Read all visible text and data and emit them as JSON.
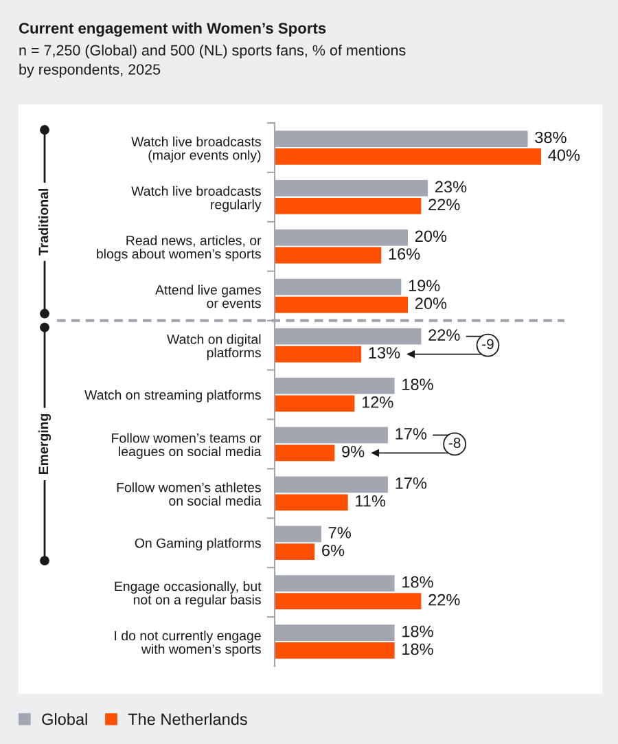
{
  "chart_data": {
    "type": "bar",
    "orientation": "horizontal",
    "title": "Current engagement with Women’s Sports",
    "subtitle": "n = 7,250 (Global) and 500 (NL) sports fans, % of mentions\nby respondents, 2025",
    "categories": [
      "Watch live broadcasts\n(major events only)",
      "Watch live broadcasts\nregularly",
      "Read news, articles, or\nblogs about women’s sports",
      "Attend live games\nor events",
      "Watch on digital\nplatforms",
      "Watch on streaming platforms",
      "Follow women’s teams or\nleagues on social media",
      "Follow women’s athletes\non social media",
      "On Gaming platforms",
      "Engage occasionally, but\nnot on a regular basis",
      "I do not currently engage\nwith women’s sports"
    ],
    "series": [
      {
        "name": "Global",
        "color": "#a1a6b0",
        "values": [
          38,
          23,
          20,
          19,
          22,
          18,
          17,
          17,
          7,
          18,
          18
        ],
        "value_labels": [
          "38%",
          "23%",
          "20%",
          "19%",
          "22%",
          "18%",
          "17%",
          "17%",
          "7%",
          "18%",
          "18%"
        ]
      },
      {
        "name": "The Netherlands",
        "color": "#fe5000",
        "values": [
          40,
          22,
          16,
          20,
          13,
          12,
          9,
          11,
          6,
          22,
          18
        ],
        "value_labels": [
          "40%",
          "22%",
          "16%",
          "20%",
          "13%",
          "12%",
          "9%",
          "11%",
          "6%",
          "22%",
          "18%"
        ]
      }
    ],
    "annotations": [
      "Traditional",
      "Emerging",
      "-9",
      "-8"
    ],
    "legend": "bottom left",
    "tick_labels": "y"
  }
}
